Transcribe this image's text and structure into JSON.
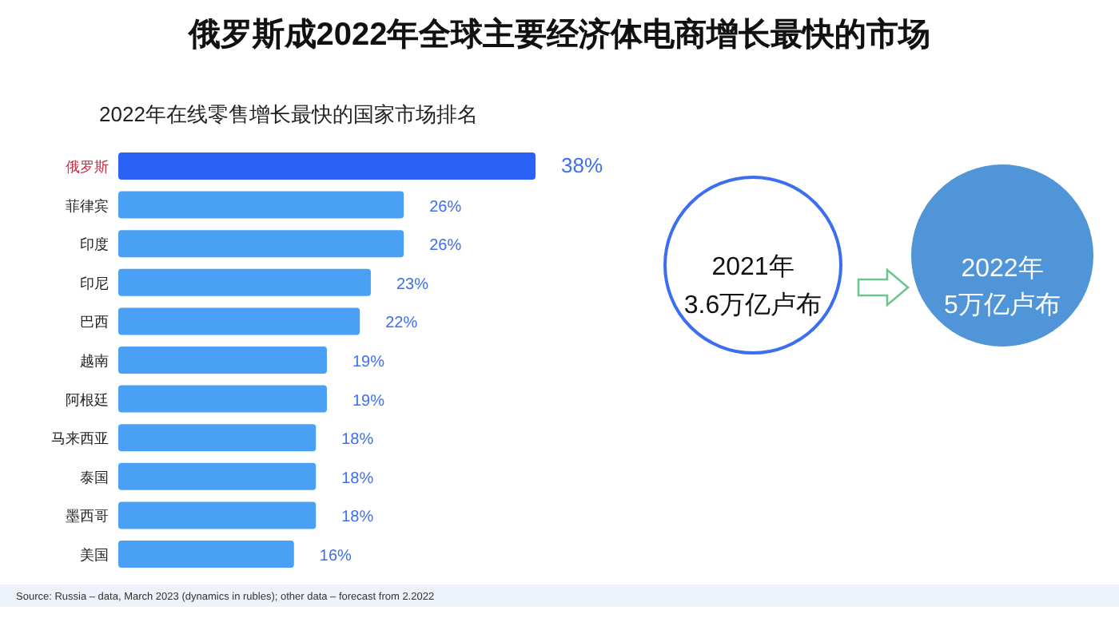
{
  "chart_data": [
    {
      "type": "bar",
      "orientation": "horizontal",
      "title": "俄罗斯成2022年全球主要经济体电商增长最快的市场",
      "subtitle": "2022年在线零售增长最快的国家市场排名",
      "categories": [
        "俄罗斯",
        "菲律宾",
        "印度",
        "印尼",
        "巴西",
        "越南",
        "阿根廷",
        "马来西亚",
        "泰国",
        "墨西哥",
        "美国"
      ],
      "values": [
        38,
        26,
        26,
        23,
        22,
        19,
        19,
        18,
        18,
        18,
        16
      ],
      "colors": [
        "#2962f5",
        "#4aa0f5",
        "#4aa0f5",
        "#4aa0f5",
        "#4aa0f5",
        "#4aa0f5",
        "#4aa0f5",
        "#4aa0f5",
        "#4aa0f5",
        "#4aa0f5",
        "#4aa0f5"
      ],
      "value_labels": [
        "38%",
        "26%",
        "26%",
        "23%",
        "22%",
        "19%",
        "19%",
        "18%",
        "18%",
        "18%",
        "16%"
      ],
      "annotations": [
        "Source: Russia – data, March 2023 (dynamics in rubles); other data – forecast from 2.2022"
      ]
    },
    {
      "type": "other",
      "annotations": [
        "2021年",
        "3.6万亿卢布",
        "2022年",
        "5万亿卢布"
      ]
    }
  ]
}
